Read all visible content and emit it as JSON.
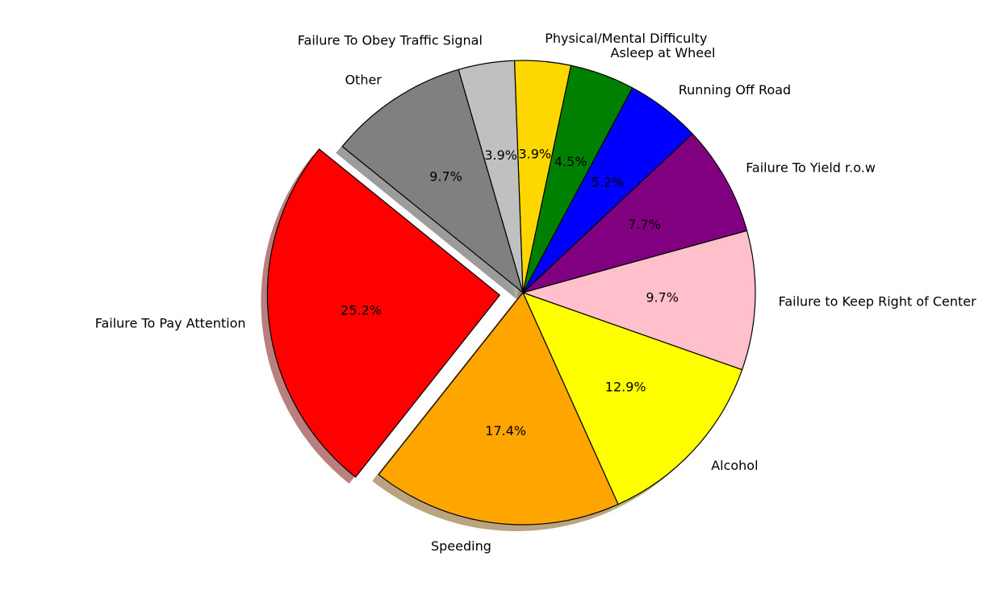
{
  "chart_data": {
    "type": "pie",
    "title": "",
    "start_angle_deg": 141,
    "direction": "counterclockwise",
    "shadow": true,
    "edge_color": "#000000",
    "slices": [
      {
        "label": "Failure To Pay Attention",
        "value": 25.2,
        "pct_label": "25.2%",
        "color": "#ff0000",
        "explode": 0.1
      },
      {
        "label": "Speeding",
        "value": 17.4,
        "pct_label": "17.4%",
        "color": "#ffa500",
        "explode": 0
      },
      {
        "label": "Alcohol",
        "value": 12.9,
        "pct_label": "12.9%",
        "color": "#ffff00",
        "explode": 0
      },
      {
        "label": "Failure to Keep Right of Center",
        "value": 9.7,
        "pct_label": "9.7%",
        "color": "#ffc0cb",
        "explode": 0
      },
      {
        "label": "Failure To Yield r.o.w",
        "value": 7.7,
        "pct_label": "7.7%",
        "color": "#800080",
        "explode": 0
      },
      {
        "label": "Running Off Road",
        "value": 5.2,
        "pct_label": "5.2%",
        "color": "#0000ff",
        "explode": 0
      },
      {
        "label": "Asleep at Wheel",
        "value": 4.5,
        "pct_label": "4.5%",
        "color": "#008000",
        "explode": 0
      },
      {
        "label": "Physical/Mental Difficulty",
        "value": 3.9,
        "pct_label": "3.9%",
        "color": "#ffd700",
        "explode": 0
      },
      {
        "label": "Failure To Obey Traffic Signal",
        "value": 3.9,
        "pct_label": "3.9%",
        "color": "#c0c0c0",
        "explode": 0
      },
      {
        "label": "Other",
        "value": 9.7,
        "pct_label": "9.7%",
        "color": "#808080",
        "explode": 0
      }
    ]
  }
}
